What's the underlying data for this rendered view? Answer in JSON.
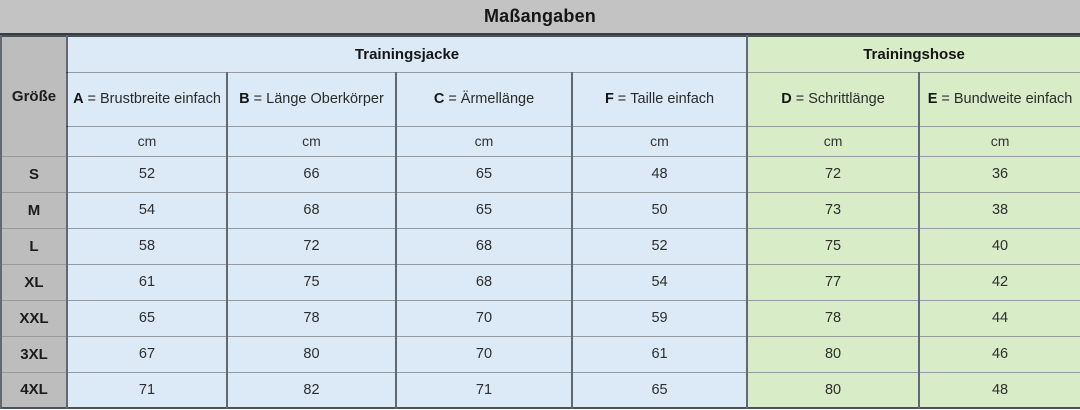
{
  "title": "Maßangaben",
  "separator": "=",
  "size_header": "Größe",
  "groups": [
    {
      "label": "Trainingsjacke",
      "span": 4
    },
    {
      "label": "Trainingshose",
      "span": 2
    }
  ],
  "columns": [
    {
      "letter": "A",
      "name": "Brustbreite einfach",
      "unit": "cm",
      "section": "jacket"
    },
    {
      "letter": "B",
      "name": "Länge Oberkörper",
      "unit": "cm",
      "section": "jacket"
    },
    {
      "letter": "C",
      "name": "Ärmellänge",
      "unit": "cm",
      "section": "jacket"
    },
    {
      "letter": "F",
      "name": "Taille einfach",
      "unit": "cm",
      "section": "jacket"
    },
    {
      "letter": "D",
      "name": "Schrittlänge",
      "unit": "cm",
      "section": "pants"
    },
    {
      "letter": "E",
      "name": "Bundweite einfach",
      "unit": "cm",
      "section": "pants"
    }
  ],
  "rows": [
    {
      "size": "S",
      "values": [
        52,
        66,
        65,
        48,
        72,
        36
      ]
    },
    {
      "size": "M",
      "values": [
        54,
        68,
        65,
        50,
        73,
        38
      ]
    },
    {
      "size": "L",
      "values": [
        58,
        72,
        68,
        52,
        75,
        40
      ]
    },
    {
      "size": "XL",
      "values": [
        61,
        75,
        68,
        54,
        77,
        42
      ]
    },
    {
      "size": "XXL",
      "values": [
        65,
        78,
        70,
        59,
        78,
        44
      ]
    },
    {
      "size": "3XL",
      "values": [
        67,
        80,
        70,
        61,
        80,
        46
      ]
    },
    {
      "size": "4XL",
      "values": [
        71,
        82,
        71,
        65,
        80,
        48
      ]
    }
  ],
  "colors": {
    "title_gray": "#c3c3c3",
    "size_cell_gray": "#bdbdbd",
    "jacket_blue": "#dce9f7",
    "pants_green": "#d9ecc8",
    "border_dark": "#2a343e",
    "text": "#1f1f1f"
  },
  "chart_data": {
    "type": "table",
    "title": "Maßangaben",
    "column_groups": [
      {
        "label": "Trainingsjacke",
        "columns": [
          "A",
          "B",
          "C",
          "F"
        ]
      },
      {
        "label": "Trainingshose",
        "columns": [
          "D",
          "E"
        ]
      }
    ],
    "unit": "cm",
    "columns": [
      "Größe",
      "A = Brustbreite einfach (cm)",
      "B = Länge Oberkörper (cm)",
      "C = Ärmellänge (cm)",
      "F = Taille einfach (cm)",
      "D = Schrittlänge (cm)",
      "E = Bundweite einfach (cm)"
    ],
    "rows": [
      [
        "S",
        52,
        66,
        65,
        48,
        72,
        36
      ],
      [
        "M",
        54,
        68,
        65,
        50,
        73,
        38
      ],
      [
        "L",
        58,
        72,
        68,
        52,
        75,
        40
      ],
      [
        "XL",
        61,
        75,
        68,
        54,
        77,
        42
      ],
      [
        "XXL",
        65,
        78,
        70,
        59,
        78,
        44
      ],
      [
        "3XL",
        67,
        80,
        70,
        61,
        80,
        46
      ],
      [
        "4XL",
        71,
        82,
        71,
        65,
        80,
        48
      ]
    ]
  }
}
